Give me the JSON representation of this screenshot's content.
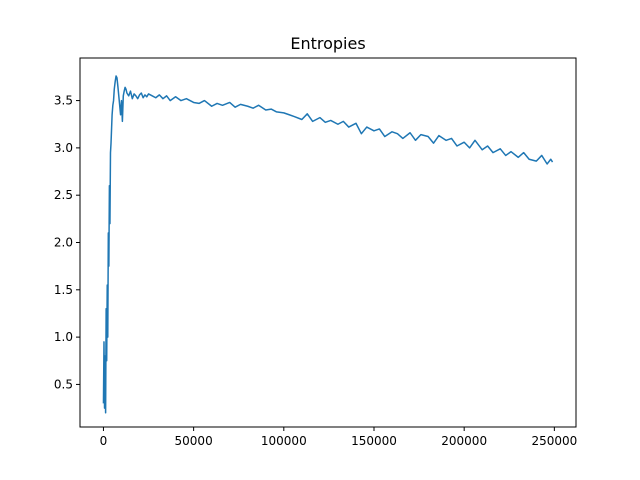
{
  "chart_data": {
    "type": "line",
    "title": "Entropies",
    "xlabel": "",
    "ylabel": "",
    "xlim": [
      -13000,
      262000
    ],
    "ylim": [
      0.05,
      3.95
    ],
    "xticks": [
      0,
      50000,
      100000,
      150000,
      200000,
      250000
    ],
    "xtick_labels": [
      "0",
      "50000",
      "100000",
      "150000",
      "200000",
      "250000"
    ],
    "yticks": [
      0.5,
      1.0,
      1.5,
      2.0,
      2.5,
      3.0,
      3.5
    ],
    "ytick_labels": [
      "0.5",
      "1.0",
      "1.5",
      "2.0",
      "2.5",
      "3.0",
      "3.5"
    ],
    "grid": false,
    "legend": "none",
    "color": "#1f77b4",
    "series": [
      {
        "x": [
          0,
          300,
          600,
          900,
          1200,
          1500,
          1800,
          2100,
          2400,
          2700,
          3000,
          3300,
          3600,
          3900,
          4200,
          4500,
          4800,
          5200,
          5600,
          6000,
          6500,
          7000,
          7500,
          8000,
          8500,
          9000,
          9500,
          10000,
          10500,
          11000,
          11500,
          12000,
          12500,
          13000,
          14000,
          15000,
          16000,
          17000,
          18000,
          19000,
          20000,
          21000,
          22000,
          23000,
          24000,
          25000,
          27000,
          29000,
          31000,
          33000,
          35000,
          37000,
          40000,
          43000,
          46000,
          50000,
          53000,
          56000,
          60000,
          63000,
          66000,
          70000,
          73000,
          76000,
          80000,
          83000,
          86000,
          90000,
          93000,
          96000,
          100000,
          103000,
          106000,
          110000,
          113000,
          116000,
          120000,
          123000,
          126000,
          130000,
          133000,
          136000,
          140000,
          143000,
          146000,
          150000,
          153000,
          156000,
          160000,
          163000,
          166000,
          170000,
          173000,
          176000,
          180000,
          183000,
          186000,
          190000,
          193000,
          196000,
          200000,
          203000,
          206000,
          210000,
          213000,
          216000,
          220000,
          223000,
          226000,
          230000,
          233000,
          236000,
          240000,
          243000,
          246000,
          248000,
          249000
        ],
        "y": [
          0.3,
          0.95,
          0.25,
          0.8,
          0.2,
          1.3,
          0.75,
          1.55,
          1.0,
          2.1,
          1.75,
          2.6,
          2.2,
          2.95,
          3.05,
          3.2,
          3.35,
          3.45,
          3.5,
          3.62,
          3.7,
          3.76,
          3.74,
          3.65,
          3.55,
          3.45,
          3.35,
          3.5,
          3.28,
          3.55,
          3.6,
          3.64,
          3.62,
          3.58,
          3.55,
          3.6,
          3.52,
          3.57,
          3.55,
          3.52,
          3.56,
          3.58,
          3.53,
          3.56,
          3.54,
          3.57,
          3.55,
          3.53,
          3.56,
          3.52,
          3.55,
          3.5,
          3.54,
          3.5,
          3.52,
          3.48,
          3.47,
          3.5,
          3.44,
          3.47,
          3.45,
          3.48,
          3.43,
          3.46,
          3.44,
          3.42,
          3.45,
          3.4,
          3.41,
          3.38,
          3.37,
          3.35,
          3.33,
          3.3,
          3.36,
          3.28,
          3.32,
          3.27,
          3.29,
          3.25,
          3.28,
          3.22,
          3.26,
          3.15,
          3.22,
          3.18,
          3.2,
          3.12,
          3.17,
          3.15,
          3.1,
          3.16,
          3.08,
          3.14,
          3.12,
          3.05,
          3.13,
          3.08,
          3.1,
          3.02,
          3.06,
          3.0,
          3.08,
          2.98,
          3.02,
          2.95,
          2.99,
          2.92,
          2.96,
          2.9,
          2.95,
          2.88,
          2.86,
          2.92,
          2.83,
          2.88,
          2.85
        ]
      }
    ]
  }
}
